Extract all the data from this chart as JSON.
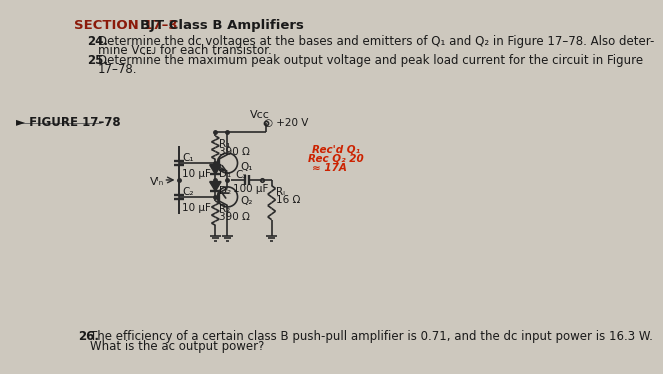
{
  "page_bg": "#cdc8be",
  "section_title": "SECTION 17–3",
  "section_subtitle": "BJT Class B Amplifiers",
  "section_color": "#8b1a0a",
  "problems": [
    {
      "number": "24.",
      "text_line1": "Determine the dc voltages at the bases and emitters of Q₁ and Q₂ in Figure 17–78. Also deter-",
      "text_line2": "mine Vᴄᴇᴊ for each transistor."
    },
    {
      "number": "25.",
      "text_line1": "Determine the maximum peak output voltage and peak load current for the circuit in Figure",
      "text_line2": "17–78."
    },
    {
      "number": "26.",
      "text_line1": "The efficiency of a certain class B push-pull amplifier is 0.71, and the dc input power is 16.3 W.",
      "text_line2": "What is the ac output power?"
    }
  ],
  "figure_label": "► FIGURE 17–78",
  "vcc_label": "Vᴄᴄ",
  "vcc_value": "○ +20 V",
  "r1_label": "R₁",
  "r1_value": "390 Ω",
  "r2_label": "R₂",
  "r2_value": "390 Ω",
  "rl_label": "Rₗ",
  "rl_value": "16 Ω",
  "c1_label": "C₁",
  "c1_value": "10 μF",
  "c2_label": "C₂",
  "c2_value": "10 μF",
  "c3_label": "C₃",
  "c3_value": "100 μF",
  "d1_label": "D₁",
  "d2_label": "D₂",
  "q1_label": "Q₁",
  "q2_label": "Q₂",
  "vin_label": "Vᴵₙ",
  "annot_lines": [
    "Rec'd Q₁",
    "Rec Q₂ 20",
    "≈ 17A"
  ],
  "line_color": "#2a2a2a",
  "text_color": "#1a1a1a"
}
